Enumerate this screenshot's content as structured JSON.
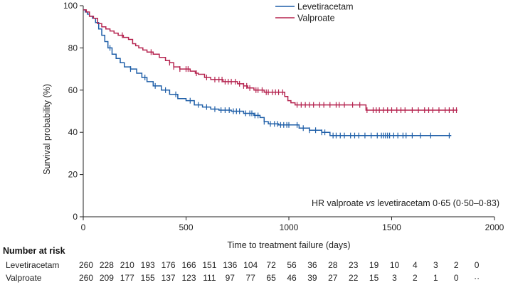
{
  "chart_data": {
    "type": "line",
    "xlabel": "Time to treatment failure (days)",
    "ylabel": "Survival probability (%)",
    "xlim": [
      0,
      2000
    ],
    "ylim": [
      0,
      100
    ],
    "xticks": [
      0,
      500,
      1000,
      1500,
      2000
    ],
    "yticks": [
      0,
      20,
      40,
      60,
      80,
      100
    ],
    "grid": false,
    "legend_position": "top-right",
    "annotation": {
      "prefix": "HR valproate ",
      "italic": "vs",
      "suffix": " levetiracetam 0·65 (0·50–0·83)"
    },
    "series": [
      {
        "name": "Levetiracetam",
        "color": "#1f5fa8",
        "step_points": [
          [
            0,
            98
          ],
          [
            10,
            97
          ],
          [
            20,
            96
          ],
          [
            30,
            95
          ],
          [
            45,
            94
          ],
          [
            60,
            92
          ],
          [
            75,
            89
          ],
          [
            90,
            86
          ],
          [
            105,
            83
          ],
          [
            120,
            80
          ],
          [
            140,
            77
          ],
          [
            160,
            75
          ],
          [
            180,
            73
          ],
          [
            200,
            71
          ],
          [
            230,
            70
          ],
          [
            260,
            68
          ],
          [
            285,
            66
          ],
          [
            310,
            64
          ],
          [
            340,
            62
          ],
          [
            380,
            60
          ],
          [
            420,
            58
          ],
          [
            460,
            56
          ],
          [
            500,
            55
          ],
          [
            540,
            53
          ],
          [
            580,
            52
          ],
          [
            620,
            51
          ],
          [
            660,
            50.5
          ],
          [
            720,
            50
          ],
          [
            780,
            49
          ],
          [
            830,
            48
          ],
          [
            860,
            47
          ],
          [
            880,
            45
          ],
          [
            900,
            44
          ],
          [
            950,
            43.5
          ],
          [
            1050,
            42
          ],
          [
            1100,
            41
          ],
          [
            1160,
            40
          ],
          [
            1200,
            38.5
          ],
          [
            1790,
            38.5
          ]
        ],
        "censor_days": [
          130,
          230,
          300,
          350,
          400,
          450,
          520,
          560,
          600,
          640,
          670,
          690,
          710,
          730,
          745,
          760,
          790,
          810,
          820,
          835,
          850,
          880,
          910,
          930,
          945,
          960,
          975,
          990,
          1000,
          1040,
          1070,
          1100,
          1130,
          1160,
          1175,
          1215,
          1230,
          1250,
          1270,
          1300,
          1320,
          1340,
          1370,
          1400,
          1430,
          1450,
          1460,
          1470,
          1480,
          1490,
          1510,
          1530,
          1555,
          1570,
          1600,
          1640,
          1690,
          1780
        ]
      },
      {
        "name": "Valproate",
        "color": "#b5234f",
        "step_points": [
          [
            0,
            98
          ],
          [
            15,
            97
          ],
          [
            30,
            95
          ],
          [
            50,
            94
          ],
          [
            70,
            91.5
          ],
          [
            90,
            90
          ],
          [
            110,
            89
          ],
          [
            130,
            88
          ],
          [
            150,
            87
          ],
          [
            170,
            86
          ],
          [
            195,
            85
          ],
          [
            220,
            84
          ],
          [
            240,
            82
          ],
          [
            255,
            81
          ],
          [
            270,
            80
          ],
          [
            290,
            79
          ],
          [
            310,
            78
          ],
          [
            340,
            77
          ],
          [
            370,
            75.5
          ],
          [
            400,
            74
          ],
          [
            420,
            73
          ],
          [
            440,
            71
          ],
          [
            470,
            70
          ],
          [
            520,
            69
          ],
          [
            545,
            68
          ],
          [
            560,
            67.5
          ],
          [
            590,
            66
          ],
          [
            620,
            65
          ],
          [
            680,
            64
          ],
          [
            750,
            63
          ],
          [
            780,
            62
          ],
          [
            800,
            61
          ],
          [
            830,
            60
          ],
          [
            880,
            59
          ],
          [
            975,
            59
          ],
          [
            980,
            57
          ],
          [
            995,
            55
          ],
          [
            1010,
            54
          ],
          [
            1030,
            53
          ],
          [
            1370,
            53
          ],
          [
            1375,
            50.5
          ],
          [
            1820,
            50.5
          ]
        ],
        "censor_days": [
          190,
          330,
          420,
          440,
          470,
          500,
          510,
          550,
          600,
          640,
          660,
          675,
          690,
          705,
          720,
          740,
          760,
          780,
          795,
          810,
          840,
          850,
          870,
          890,
          900,
          920,
          935,
          950,
          970,
          1040,
          1060,
          1080,
          1100,
          1120,
          1150,
          1170,
          1200,
          1230,
          1245,
          1270,
          1310,
          1345,
          1380,
          1410,
          1425,
          1440,
          1460,
          1480,
          1500,
          1525,
          1545,
          1565,
          1600,
          1630,
          1660,
          1680,
          1700,
          1730,
          1760,
          1780,
          1800,
          1815
        ]
      }
    ],
    "number_at_risk": {
      "title": "Number at risk",
      "rows": [
        {
          "label": "Levetiracetam",
          "values": [
            "260",
            "228",
            "210",
            "193",
            "176",
            "166",
            "151",
            "136",
            "104",
            "72",
            "56",
            "36",
            "28",
            "23",
            "19",
            "10",
            "4",
            "3",
            "2",
            "0"
          ]
        },
        {
          "label": "Valproate",
          "values": [
            "260",
            "209",
            "177",
            "155",
            "137",
            "123",
            "111",
            "97",
            "77",
            "65",
            "46",
            "39",
            "27",
            "22",
            "15",
            "3",
            "2",
            "1",
            "0",
            "··"
          ]
        }
      ]
    }
  }
}
